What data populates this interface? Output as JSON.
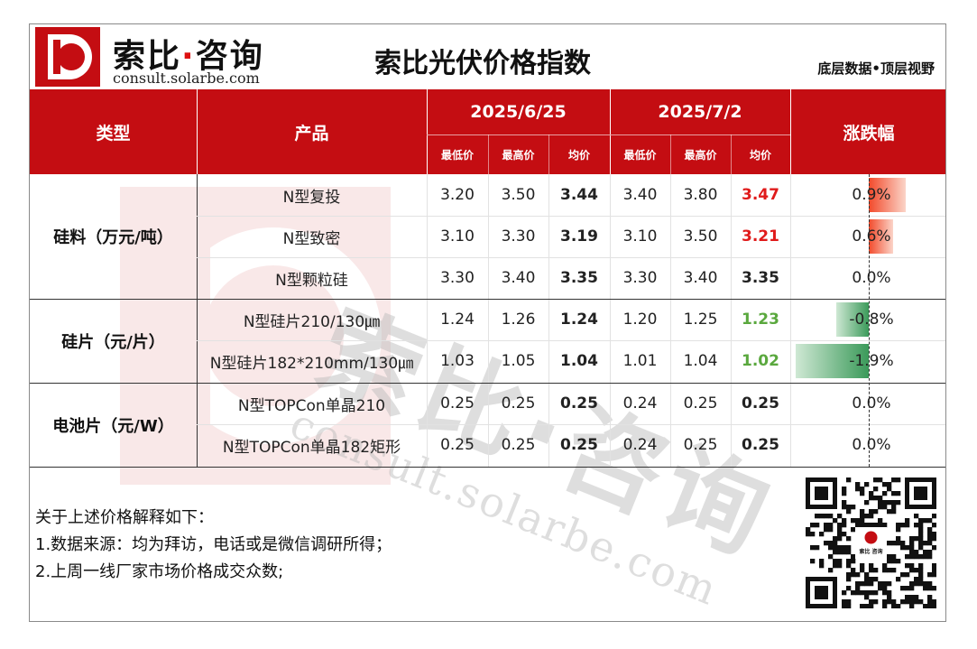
{
  "header": {
    "logo_cn_main": "索比",
    "logo_cn_dot": "·",
    "logo_cn_tail": "咨询",
    "logo_url": "consult.solarbe.com",
    "title": "索比光伏价格指数",
    "slogan": "底层数据•顶层视野"
  },
  "watermark": {
    "text_cn": "索比·咨询",
    "text_en": "consult.solarbe.com"
  },
  "table": {
    "col_type": "类型",
    "col_product": "产品",
    "date1": "2025/6/25",
    "date2": "2025/7/2",
    "col_change": "涨跌幅",
    "sub_min": "最低价",
    "sub_max": "最高价",
    "sub_avg": "均价",
    "groups": [
      {
        "category": "硅料（万元/吨）",
        "rows": [
          {
            "product": "N型复投",
            "d1_min": "3.20",
            "d1_max": "3.50",
            "d1_avg": "3.44",
            "d2_min": "3.40",
            "d2_max": "3.80",
            "d2_avg": "3.47",
            "change": "0.9%",
            "change_value": 0.9,
            "trend": "up"
          },
          {
            "product": "N型致密",
            "d1_min": "3.10",
            "d1_max": "3.30",
            "d1_avg": "3.19",
            "d2_min": "3.10",
            "d2_max": "3.50",
            "d2_avg": "3.21",
            "change": "0.6%",
            "change_value": 0.6,
            "trend": "up"
          },
          {
            "product": "N型颗粒硅",
            "d1_min": "3.30",
            "d1_max": "3.40",
            "d1_avg": "3.35",
            "d2_min": "3.30",
            "d2_max": "3.40",
            "d2_avg": "3.35",
            "change": "0.0%",
            "change_value": 0.0,
            "trend": "flat"
          }
        ]
      },
      {
        "category": "硅片（元/片）",
        "rows": [
          {
            "product": "N型硅片210/130㎛",
            "d1_min": "1.24",
            "d1_max": "1.26",
            "d1_avg": "1.24",
            "d2_min": "1.20",
            "d2_max": "1.25",
            "d2_avg": "1.23",
            "change": "-0.8%",
            "change_value": -0.8,
            "trend": "down"
          },
          {
            "product": "N型硅片182*210mm/130㎛",
            "d1_min": "1.03",
            "d1_max": "1.05",
            "d1_avg": "1.04",
            "d2_min": "1.01",
            "d2_max": "1.04",
            "d2_avg": "1.02",
            "change": "-1.9%",
            "change_value": -1.9,
            "trend": "down"
          }
        ]
      },
      {
        "category": "电池片（元/W）",
        "rows": [
          {
            "product": "N型TOPCon单晶210",
            "d1_min": "0.25",
            "d1_max": "0.25",
            "d1_avg": "0.25",
            "d2_min": "0.24",
            "d2_max": "0.25",
            "d2_avg": "0.25",
            "change": "0.0%",
            "change_value": 0.0,
            "trend": "flat"
          },
          {
            "product": "N型TOPCon单晶182矩形",
            "d1_min": "0.25",
            "d1_max": "0.25",
            "d1_avg": "0.25",
            "d2_min": "0.24",
            "d2_max": "0.25",
            "d2_avg": "0.25",
            "change": "0.0%",
            "change_value": 0.0,
            "trend": "flat"
          }
        ]
      }
    ]
  },
  "notes": {
    "intro": "关于上述价格解释如下：",
    "items": [
      "1.数据来源：均为拜访，电话或是微信调研所得；",
      "2.上周一线厂家市场价格成交众数;"
    ]
  },
  "qr": {
    "badge_text": "索比 咨询"
  },
  "colors": {
    "header_red": "#c40d12",
    "up_red": "#e01b1b",
    "down_green": "#5aa83e"
  }
}
